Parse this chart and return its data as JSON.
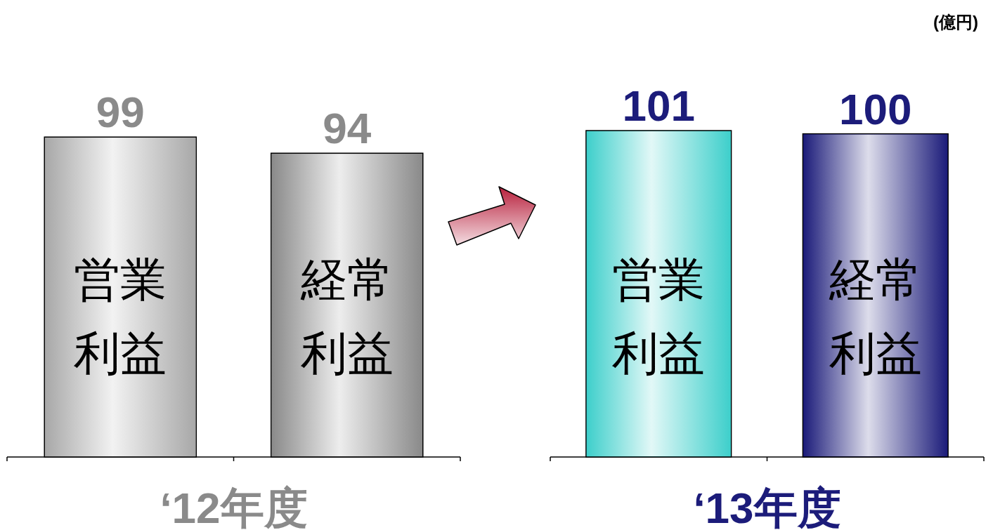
{
  "chart_data": [
    {
      "type": "bar",
      "xlabel": "‘12年度",
      "categories": [
        "営業利益",
        "経常利益"
      ],
      "values": [
        99,
        94
      ],
      "colors": [
        "#a8a8a8",
        "#8a8a8a"
      ],
      "data_labels": true
    },
    {
      "type": "bar",
      "xlabel": "‘13年度",
      "categories": [
        "営業利益",
        "経常利益"
      ],
      "values": [
        101,
        100
      ],
      "colors": [
        "#3ecfcb",
        "#1c1c7a"
      ],
      "data_labels": true,
      "annotations": [
        "(億円)"
      ]
    }
  ]
}
